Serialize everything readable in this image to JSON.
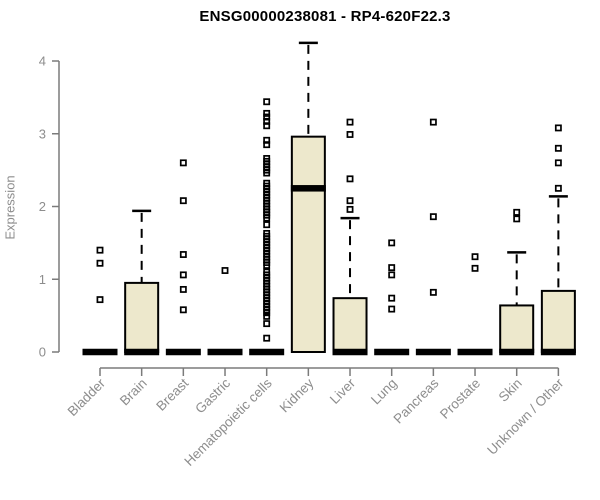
{
  "chart_data": {
    "type": "boxplot",
    "title": "ENSG00000238081 - RP4-620F22.3",
    "ylabel": "Expression",
    "xlabel": "",
    "yticks": [
      0,
      1,
      2,
      3,
      4
    ],
    "ylim": [
      0,
      4.3
    ],
    "grid": false,
    "legend": "none",
    "categories": [
      "Bladder",
      "Brain",
      "Breast",
      "Gastric",
      "Hematopoietic cells",
      "Kidney",
      "Liver",
      "Lung",
      "Pancreas",
      "Prostate",
      "Skin",
      "Unknown / Other"
    ],
    "boxes": [
      {
        "category": "Bladder",
        "q1": 0,
        "median": 0,
        "q3": 0,
        "whisker_low": 0,
        "whisker_high": 0,
        "outliers": [
          1.4,
          1.22,
          0.72
        ]
      },
      {
        "category": "Brain",
        "q1": 0,
        "median": 0,
        "q3": 0.95,
        "whisker_low": 0,
        "whisker_high": 1.94,
        "outliers": []
      },
      {
        "category": "Breast",
        "q1": 0,
        "median": 0,
        "q3": 0,
        "whisker_low": 0,
        "whisker_high": 0,
        "outliers": [
          2.6,
          2.08,
          1.34,
          1.06,
          0.86,
          0.58
        ]
      },
      {
        "category": "Gastric",
        "q1": 0,
        "median": 0,
        "q3": 0,
        "whisker_low": 0,
        "whisker_high": 0,
        "outliers": [
          1.12
        ]
      },
      {
        "category": "Hematopoietic cells",
        "q1": 0,
        "median": 0,
        "q3": 0,
        "whisker_low": 0,
        "whisker_high": 0,
        "outliers": [
          3.44,
          3.28,
          3.23,
          3.17,
          3.11,
          2.91,
          2.85,
          2.66,
          2.62,
          2.58,
          2.54,
          2.5,
          2.46,
          2.32,
          2.28,
          2.24,
          2.2,
          2.16,
          2.12,
          2.08,
          2.04,
          2.0,
          1.96,
          1.92,
          1.88,
          1.84,
          1.75,
          1.63,
          1.59,
          1.55,
          1.51,
          1.47,
          1.43,
          1.39,
          1.35,
          1.31,
          1.27,
          1.23,
          1.19,
          1.1,
          1.06,
          1.02,
          0.98,
          0.94,
          0.9,
          0.86,
          0.82,
          0.78,
          0.74,
          0.7,
          0.66,
          0.62,
          0.58,
          0.54,
          0.49,
          0.39,
          0.19
        ]
      },
      {
        "category": "Kidney",
        "q1": 0,
        "median": 2.25,
        "q3": 2.96,
        "whisker_low": 0,
        "whisker_high": 4.25,
        "outliers": []
      },
      {
        "category": "Liver",
        "q1": 0,
        "median": 0,
        "q3": 0.74,
        "whisker_low": 0,
        "whisker_high": 1.84,
        "outliers": [
          3.16,
          2.99,
          2.38,
          2.08,
          1.96
        ]
      },
      {
        "category": "Lung",
        "q1": 0,
        "median": 0,
        "q3": 0,
        "whisker_low": 0,
        "whisker_high": 0,
        "outliers": [
          1.5,
          1.16,
          1.06,
          0.74,
          0.59
        ]
      },
      {
        "category": "Pancreas",
        "q1": 0,
        "median": 0,
        "q3": 0,
        "whisker_low": 0,
        "whisker_high": 0,
        "outliers": [
          3.16,
          1.86,
          0.82
        ]
      },
      {
        "category": "Prostate",
        "q1": 0,
        "median": 0,
        "q3": 0,
        "whisker_low": 0,
        "whisker_high": 0,
        "outliers": [
          1.31,
          1.15
        ]
      },
      {
        "category": "Skin",
        "q1": 0,
        "median": 0,
        "q3": 0.64,
        "whisker_low": 0,
        "whisker_high": 1.37,
        "outliers": [
          1.92,
          1.83
        ]
      },
      {
        "category": "Unknown / Other",
        "q1": 0,
        "median": 0,
        "q3": 0.84,
        "whisker_low": 0,
        "whisker_high": 2.14,
        "outliers": [
          3.08,
          2.8,
          2.6,
          2.25
        ]
      }
    ],
    "colors": {
      "box_fill": "#EDE8CC",
      "box_border": "#000000",
      "median": "#000000",
      "whisker": "#000000",
      "outlier": "#000000",
      "axis": "#7b7b7b",
      "tick_label": "#8d8d8d",
      "title": "#000000",
      "background": "#ffffff"
    }
  }
}
